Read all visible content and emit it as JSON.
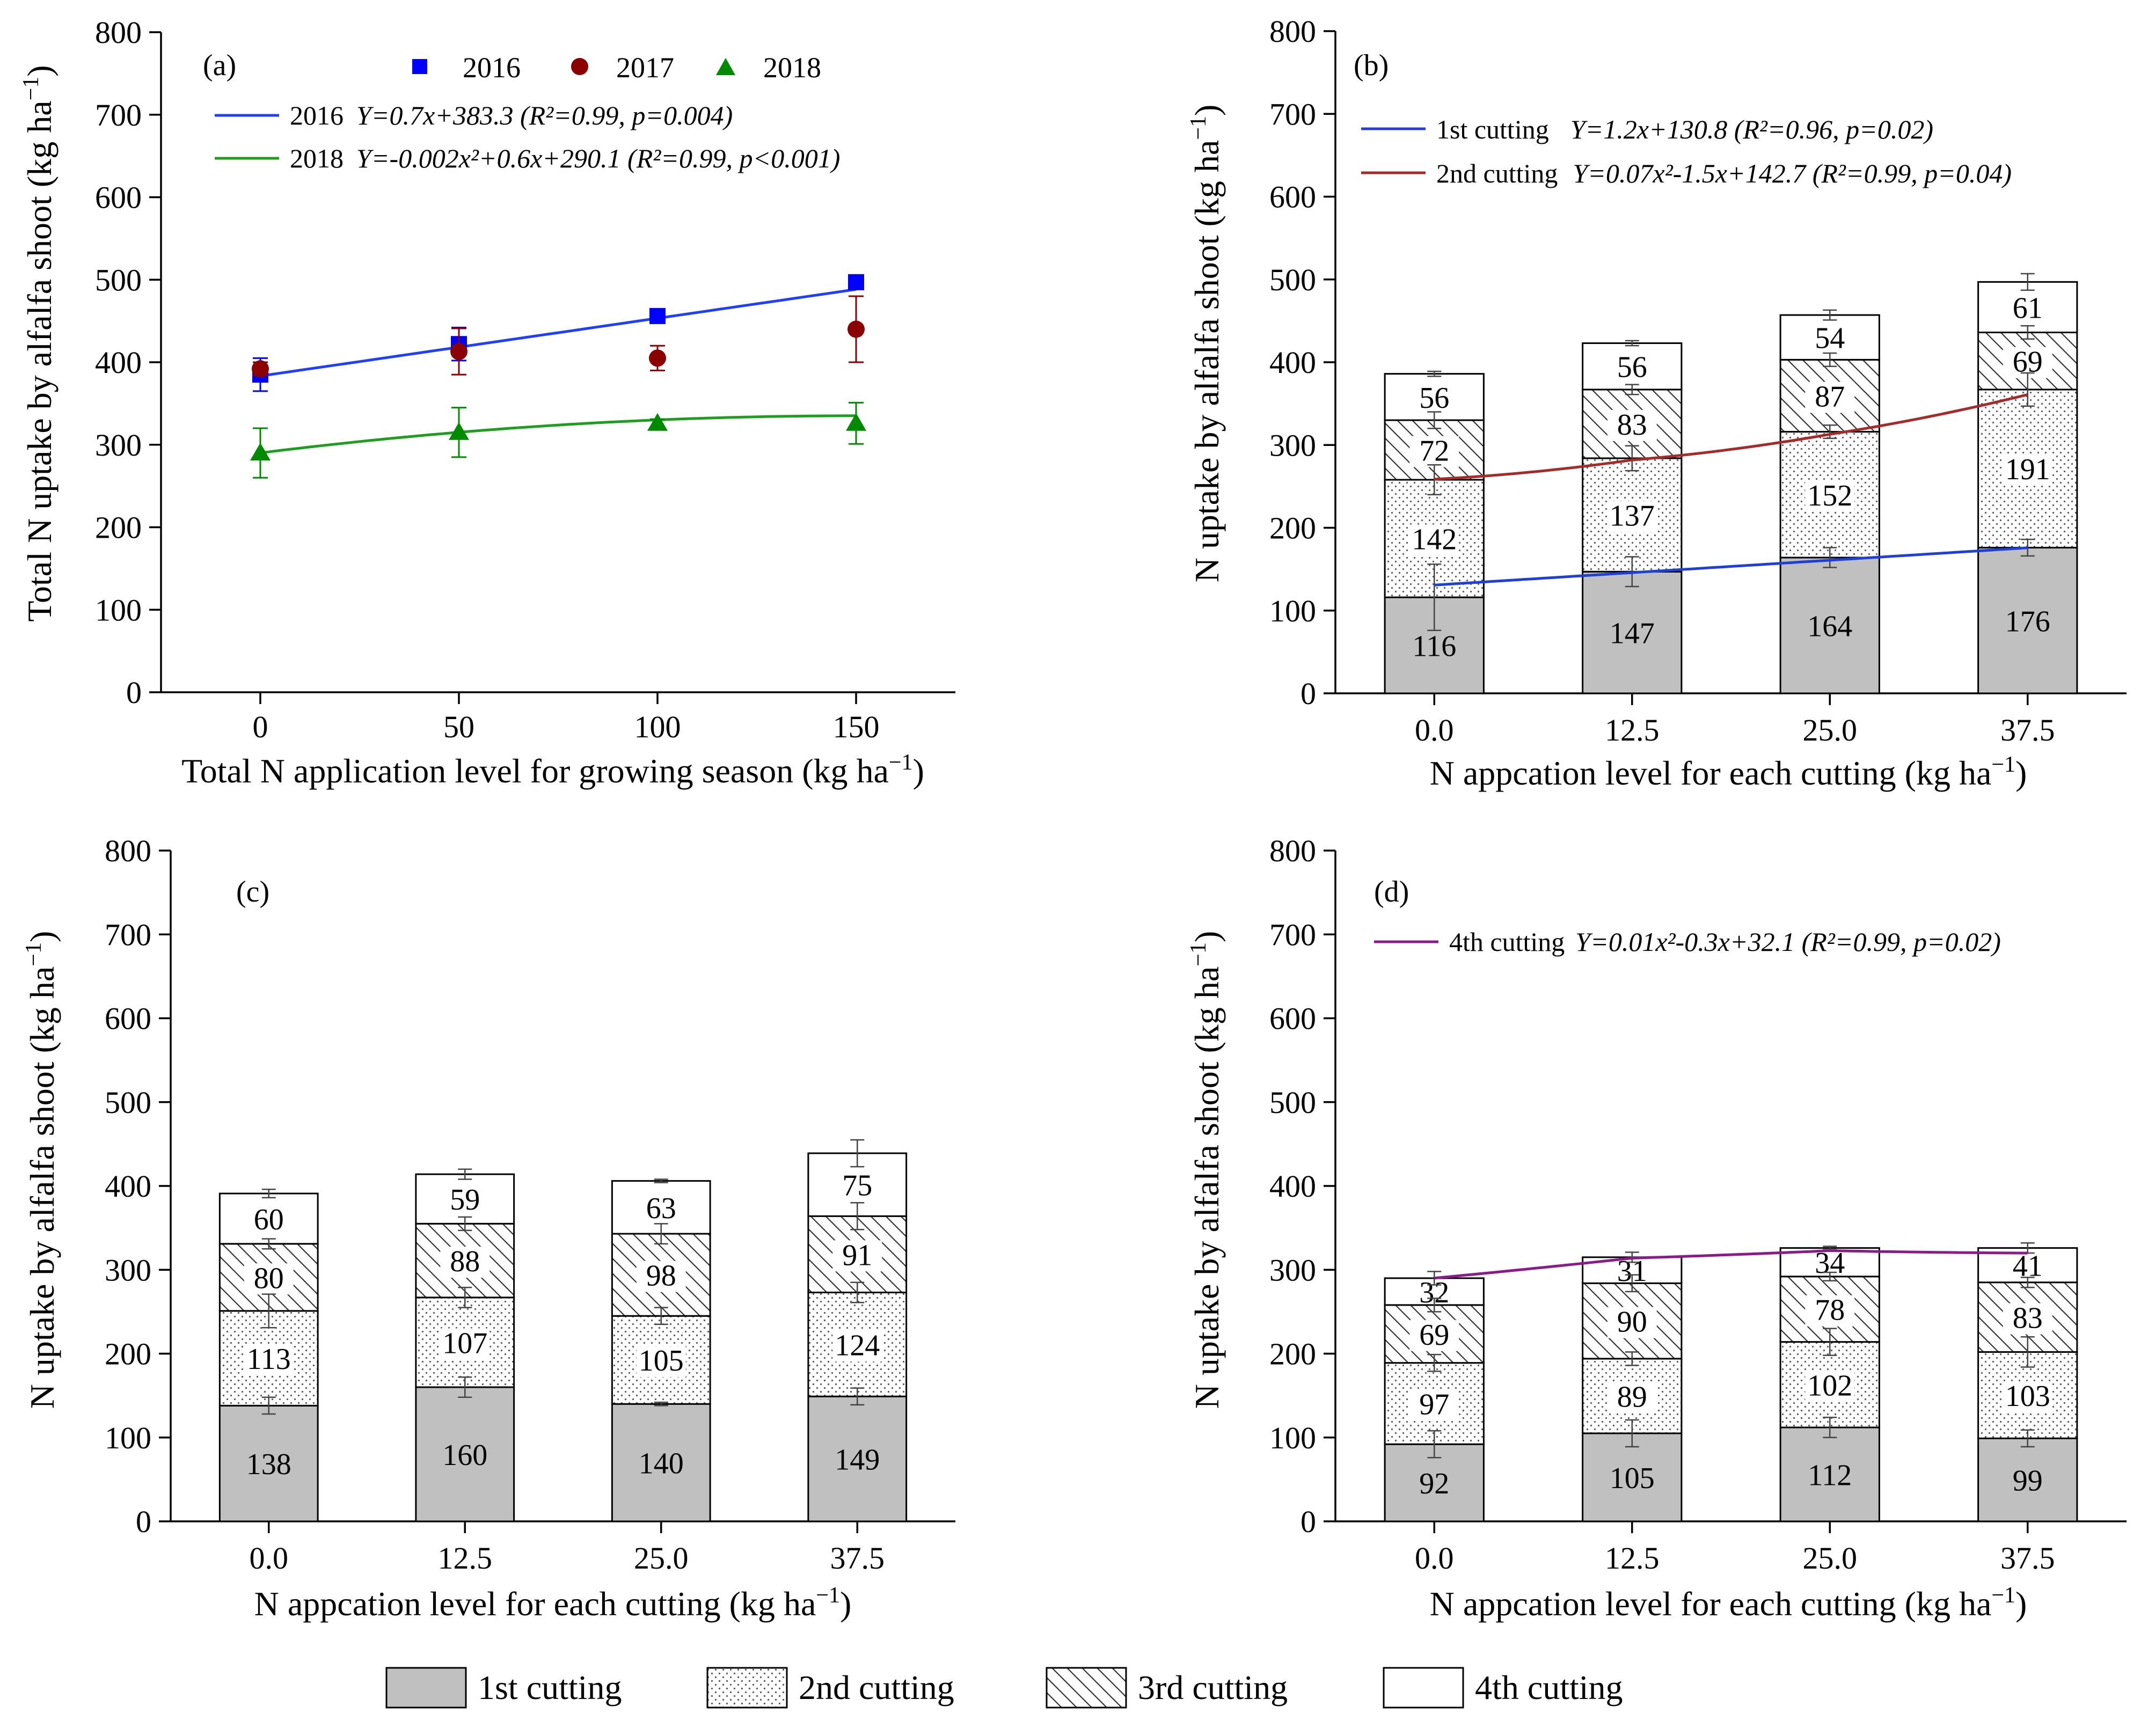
{
  "charts": {
    "a": {
      "panel_label": "(a)",
      "ylabel_main": "Total N uptake by alfalfa shoot (kg ha",
      "ylabel_sup": "−1",
      "ylabel_close": ")",
      "xlabel_main": "Total N application level for growing season (kg ha",
      "xlabel_sup": "−1",
      "xlabel_close": ")",
      "legend": [
        "2016",
        "2017",
        "2018"
      ],
      "equations": [
        {
          "year": "2016",
          "text": "Y=0.7x+383.3 (R²=0.99, p=0.004)"
        },
        {
          "year": "2018",
          "text": "Y=-0.002x²+0.6x+290.1 (R²=0.99, p<0.001)"
        }
      ]
    },
    "b": {
      "panel_label": "(b)",
      "ylabel_main": "N uptake by alfalfa shoot (kg ha",
      "ylabel_sup": "−1",
      "ylabel_close": ")",
      "xlabel_main": "N appcation level for each cutting (kg ha",
      "xlabel_sup": "−1",
      "xlabel_close": ")",
      "equations": [
        {
          "name": "1st cutting",
          "text": "Y=1.2x+130.8 (R²=0.96, p=0.02)"
        },
        {
          "name": "2nd cutting",
          "text": "Y=0.07x²-1.5x+142.7 (R²=0.99, p=0.04)"
        }
      ]
    },
    "c": {
      "panel_label": "(c)",
      "ylabel_main": "N uptake by alfalfa shoot (kg ha",
      "ylabel_sup": "−1",
      "ylabel_close": ")",
      "xlabel_main": "N appcation level for each cutting (kg ha",
      "xlabel_sup": "−1",
      "xlabel_close": ")"
    },
    "d": {
      "panel_label": "(d)",
      "ylabel_main": "N uptake by alfalfa shoot (kg ha",
      "ylabel_sup": "−1",
      "ylabel_close": ")",
      "xlabel_main": "N appcation level for each cutting (kg ha",
      "xlabel_sup": "−1",
      "xlabel_close": ")",
      "equations": [
        {
          "name": "4th cutting",
          "text": "Y=0.01x²-0.3x+32.1 (R²=0.99, p=0.02)"
        }
      ]
    }
  },
  "bottom_legend": [
    "1st cutting",
    "2nd cutting",
    "3rd cutting",
    "4th cutting"
  ],
  "colors": {
    "y2016": "#0000ff",
    "y2017": "#8b0000",
    "y2018": "#008a00",
    "fit2016": "#1f3fff",
    "fit2018": "#1e9e1e",
    "cut1_fit": "#1f3fd9",
    "cut2_fit": "#a52a2a",
    "cut4_fit": "#8b1a8b",
    "bar1": "#c0c0c0"
  },
  "chart_data": [
    {
      "id": "a",
      "type": "scatter",
      "x": [
        0,
        50,
        100,
        150
      ],
      "xlim": [
        -25,
        175
      ],
      "ylim": [
        0,
        800
      ],
      "xticks": [
        0,
        50,
        100,
        150
      ],
      "yticks": [
        0,
        100,
        200,
        300,
        400,
        500,
        600,
        700,
        800
      ],
      "series": [
        {
          "name": "2016",
          "values": [
            385,
            422,
            456,
            497
          ],
          "errors": [
            20,
            20,
            6,
            8
          ],
          "marker": "square",
          "fit": {
            "type": "linear",
            "a": 0,
            "b": 0.7,
            "c": 383.3
          }
        },
        {
          "name": "2017",
          "values": [
            392,
            413,
            405,
            440
          ],
          "errors": [
            8,
            28,
            15,
            40
          ],
          "marker": "circle"
        },
        {
          "name": "2018",
          "values": [
            290,
            315,
            326,
            326
          ],
          "errors": [
            30,
            30,
            5,
            25
          ],
          "marker": "triangle",
          "fit": {
            "type": "quadratic",
            "a": -0.002,
            "b": 0.6,
            "c": 290.1
          }
        }
      ]
    },
    {
      "id": "b",
      "type": "bar",
      "stacked": true,
      "categories": [
        "0.0",
        "12.5",
        "25.0",
        "37.5"
      ],
      "x": [
        0,
        12.5,
        25,
        37.5
      ],
      "ylim": [
        0,
        800
      ],
      "yticks": [
        0,
        100,
        200,
        300,
        400,
        500,
        600,
        700,
        800
      ],
      "series": [
        {
          "name": "1st cutting",
          "values": [
            116,
            147,
            164,
            176
          ],
          "errors": [
            40,
            18,
            12,
            10
          ]
        },
        {
          "name": "2nd cutting",
          "values": [
            142,
            137,
            152,
            191
          ],
          "errors": [
            18,
            15,
            8,
            20
          ]
        },
        {
          "name": "3rd cutting",
          "values": [
            72,
            83,
            87,
            69
          ],
          "errors": [
            10,
            6,
            8,
            8
          ]
        },
        {
          "name": "4th cutting",
          "values": [
            56,
            56,
            54,
            61
          ],
          "errors": [
            3,
            3,
            6,
            10
          ]
        }
      ],
      "fits": [
        {
          "name": "1st cutting",
          "a": 0,
          "b": 1.2,
          "c": 130.8,
          "cumulative": 1
        },
        {
          "name": "2nd cutting",
          "a": 0.07,
          "b": -1.5,
          "c": 142.7,
          "cumulative": 2
        }
      ]
    },
    {
      "id": "c",
      "type": "bar",
      "stacked": true,
      "categories": [
        "0.0",
        "12.5",
        "25.0",
        "37.5"
      ],
      "x": [
        0,
        12.5,
        25,
        37.5
      ],
      "ylim": [
        0,
        800
      ],
      "yticks": [
        0,
        100,
        200,
        300,
        400,
        500,
        600,
        700,
        800
      ],
      "series": [
        {
          "name": "1st cutting",
          "values": [
            138,
            160,
            140,
            149
          ],
          "errors": [
            10,
            12,
            2,
            10
          ]
        },
        {
          "name": "2nd cutting",
          "values": [
            113,
            107,
            105,
            124
          ],
          "errors": [
            20,
            12,
            10,
            12
          ]
        },
        {
          "name": "3rd cutting",
          "values": [
            80,
            88,
            98,
            91
          ],
          "errors": [
            6,
            8,
            12,
            16
          ]
        },
        {
          "name": "4th cutting",
          "values": [
            60,
            59,
            63,
            75
          ],
          "errors": [
            5,
            6,
            2,
            16
          ]
        }
      ],
      "fits": []
    },
    {
      "id": "d",
      "type": "bar",
      "stacked": true,
      "categories": [
        "0.0",
        "12.5",
        "25.0",
        "37.5"
      ],
      "x": [
        0,
        12.5,
        25,
        37.5
      ],
      "ylim": [
        0,
        800
      ],
      "yticks": [
        0,
        100,
        200,
        300,
        400,
        500,
        600,
        700,
        800
      ],
      "series": [
        {
          "name": "1st cutting",
          "values": [
            92,
            105,
            112,
            99
          ],
          "errors": [
            16,
            16,
            12,
            10
          ]
        },
        {
          "name": "2nd cutting",
          "values": [
            97,
            89,
            102,
            103
          ],
          "errors": [
            10,
            8,
            16,
            18
          ]
        },
        {
          "name": "3rd cutting",
          "values": [
            69,
            90,
            78,
            83
          ],
          "errors": [
            8,
            10,
            5,
            6
          ]
        },
        {
          "name": "4th cutting",
          "values": [
            32,
            31,
            34,
            41
          ],
          "errors": [
            8,
            6,
            2,
            6
          ]
        }
      ],
      "fits": [
        {
          "name": "4th cutting",
          "a": 0.01,
          "b": -0.3,
          "c": 32.1,
          "cumulative": 4
        }
      ]
    }
  ]
}
